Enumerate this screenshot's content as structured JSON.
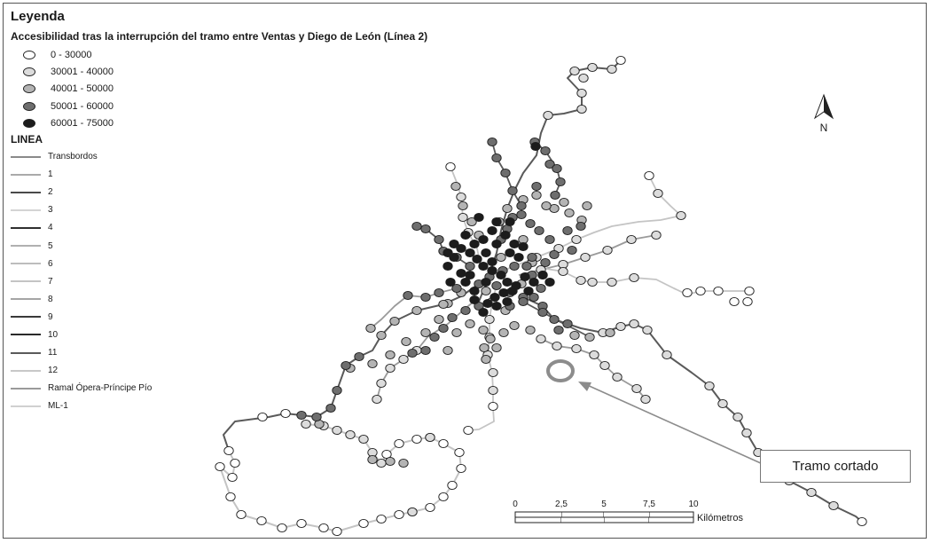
{
  "legend": {
    "title": "Leyenda",
    "subtitle": "Accesibilidad tras la interrupción del tramo entre Ventas y Diego de León (Línea 2)",
    "classes": [
      {
        "label": "0 - 30000",
        "color": "#ffffff"
      },
      {
        "label": "30001 - 40000",
        "color": "#dcdcdc"
      },
      {
        "label": "40001 - 50000",
        "color": "#b4b4b4"
      },
      {
        "label": "50001 - 60000",
        "color": "#6e6e6e"
      },
      {
        "label": "60001 - 75000",
        "color": "#1c1c1c"
      }
    ],
    "lines_title": "LINEA",
    "lines": [
      {
        "label": "Transbordos",
        "color": "#8a8a8a"
      },
      {
        "label": "1",
        "color": "#aaaaaa"
      },
      {
        "label": "2",
        "color": "#4a4a4a"
      },
      {
        "label": "3",
        "color": "#d4d4d4"
      },
      {
        "label": "4",
        "color": "#2f2f2f"
      },
      {
        "label": "5",
        "color": "#b0b0b0"
      },
      {
        "label": "6",
        "color": "#bdbdbd"
      },
      {
        "label": "7",
        "color": "#c4c4c4"
      },
      {
        "label": "8",
        "color": "#a5a5a5"
      },
      {
        "label": "9",
        "color": "#3a3a3a"
      },
      {
        "label": "10",
        "color": "#2a2a2a"
      },
      {
        "label": "11",
        "color": "#5a5a5a"
      },
      {
        "label": "12",
        "color": "#c8c8c8"
      },
      {
        "label": "Ramal Ópera-Príncipe Pío",
        "color": "#9a9a9a"
      },
      {
        "label": "ML-1",
        "color": "#d0d0d0"
      }
    ]
  },
  "north_arrow": {
    "label": "N"
  },
  "scale_bar": {
    "ticks": [
      "0",
      "2,5",
      "5",
      "7,5",
      "10"
    ],
    "units": "Kilómetros"
  },
  "callout": {
    "label": "Tramo cortado"
  }
}
